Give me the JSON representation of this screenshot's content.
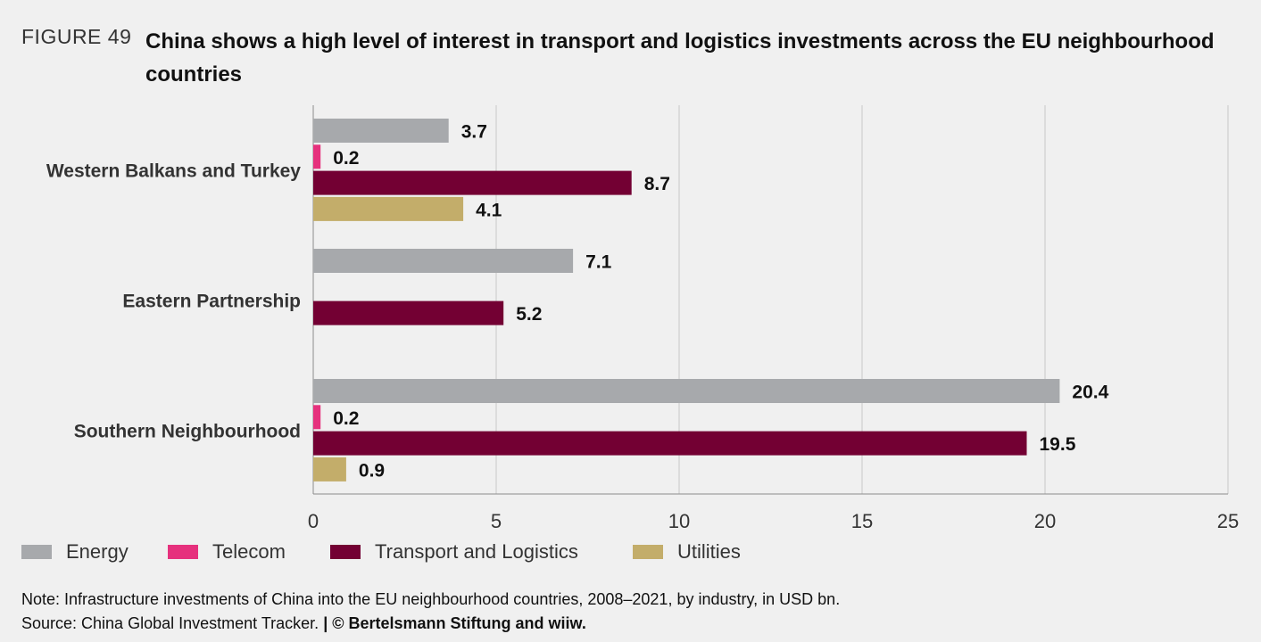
{
  "figure": {
    "label": "FIGURE 49",
    "title": "China shows a high level of interest in transport and logistics investments across the EU neighbourhood countries"
  },
  "chart_data": {
    "type": "bar",
    "orientation": "horizontal",
    "categories": [
      "Western Balkans and Turkey",
      "Eastern Partnership",
      "Southern Neighbourhood"
    ],
    "series": [
      {
        "name": "Energy",
        "color": "#a7a9ac",
        "values": [
          3.7,
          7.1,
          20.4
        ]
      },
      {
        "name": "Telecom",
        "color": "#e6317d",
        "values": [
          0.2,
          null,
          0.2
        ]
      },
      {
        "name": "Transport and Logistics",
        "color": "#730033",
        "values": [
          8.7,
          5.2,
          19.5
        ]
      },
      {
        "name": "Utilities",
        "color": "#c3ad6a",
        "values": [
          4.1,
          null,
          0.9
        ]
      }
    ],
    "xlim": [
      0,
      25
    ],
    "xticks": [
      0,
      5,
      10,
      15,
      20,
      25
    ],
    "grid": "vertical",
    "legend_position": "bottom-left",
    "data_labels": true
  },
  "footer": {
    "note": "Note: Infrastructure investments of China into the EU neighbourhood countries, 2008–2021, by industry, in USD bn.",
    "source": "Source: China Global Investment Tracker.",
    "separator": "|",
    "copyright": "© Bertelsmann Stiftung and wiiw."
  }
}
